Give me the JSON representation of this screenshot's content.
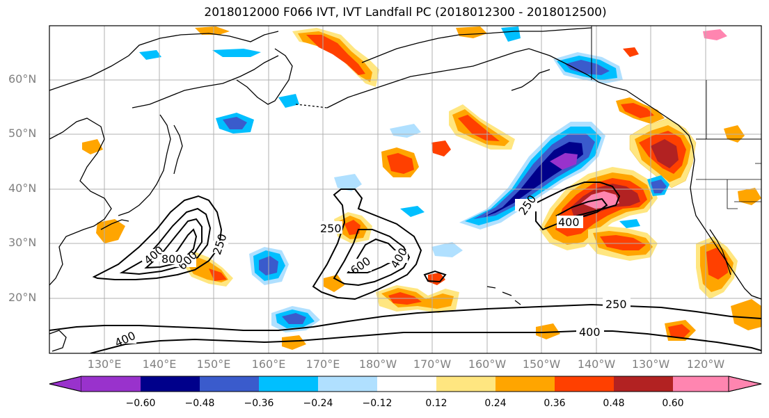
{
  "title": "2018012000 F066 IVT, IVT Landfall PC (2018012300 - 2018012500)",
  "latitude_labels": [
    "60°N",
    "50°N",
    "40°N",
    "30°N",
    "20°N"
  ],
  "longitude_labels": [
    "130°E",
    "140°E",
    "150°E",
    "160°E",
    "170°E",
    "180°W",
    "170°W",
    "160°W",
    "150°W",
    "140°W",
    "130°W",
    "120°W"
  ],
  "contour_labels": [
    "250",
    "400",
    "600",
    "800",
    "250",
    "400",
    "600",
    "250",
    "400",
    "250",
    "400",
    "400"
  ],
  "colorbar": {
    "ticks": [
      "−0.60",
      "−0.48",
      "−0.36",
      "−0.24",
      "−0.12",
      "0.12",
      "0.24",
      "0.36",
      "0.48",
      "0.60"
    ],
    "colors": [
      "#9932cc",
      "#00008b",
      "#3a5bcc",
      "#00bfff",
      "#b0e0ff",
      "#ffffff",
      "#ffe680",
      "#ffa500",
      "#ff4000",
      "#b22222",
      "#ff85b0",
      "#ff85b0"
    ]
  },
  "map": {
    "projection": "cylindrical",
    "region": "North Pacific",
    "gridlines": true
  }
}
